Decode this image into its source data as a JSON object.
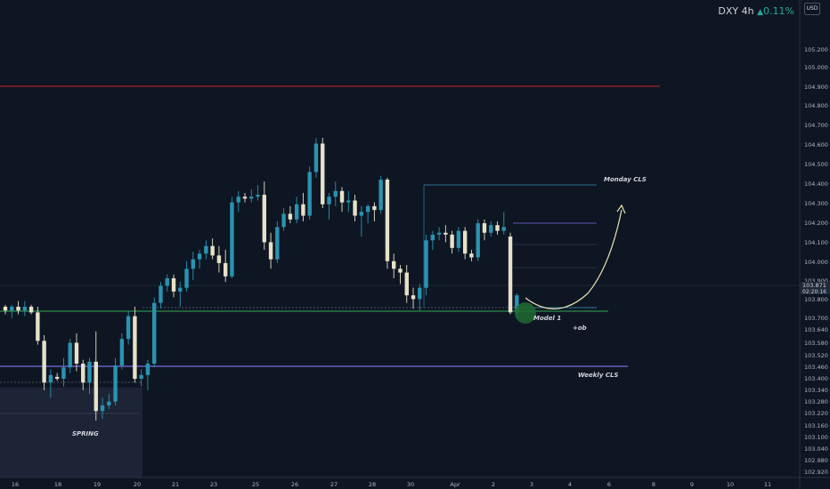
{
  "header": {
    "symbol": "DXY",
    "timeframe": "4h",
    "change": "0.11%",
    "currency": "USD"
  },
  "colors": {
    "background": "#0e1623",
    "bull": "#2a93b0",
    "bear": "#e6e1c8",
    "red_line": "#c9232b",
    "green_line": "#34a853",
    "purple_line": "#7b6ee0",
    "blue_line": "#3a8fb7",
    "arrow": "#e9e3b4"
  },
  "chart_data": {
    "type": "candlestick",
    "ylim": [
      102.92,
      105.37
    ],
    "y_ticks": [
      "105.200",
      "105.000",
      "104.900",
      "104.800",
      "104.700",
      "104.600",
      "104.500",
      "104.400",
      "104.300",
      "104.200",
      "104.100",
      "104.000",
      "103.900",
      "103.800",
      "103.700",
      "103.640",
      "103.580",
      "103.520",
      "103.460",
      "103.400",
      "103.340",
      "103.280",
      "103.220",
      "103.160",
      "103.100",
      "103.040",
      "102.980",
      "102.920"
    ],
    "x_ticks": [
      "16",
      "18",
      "19",
      "20",
      "21",
      "23",
      "25",
      "26",
      "27",
      "28",
      "30",
      "Apr",
      "2",
      "3",
      "4",
      "6",
      "8",
      "9",
      "10",
      "11"
    ],
    "current_price": {
      "value": "103.871",
      "countdown": "02:20:16"
    },
    "candles": [
      {
        "o": 103.8,
        "h": 103.81,
        "l": 103.76,
        "c": 103.78
      },
      {
        "o": 103.78,
        "h": 103.81,
        "l": 103.74,
        "c": 103.8
      },
      {
        "o": 103.8,
        "h": 103.83,
        "l": 103.76,
        "c": 103.78
      },
      {
        "o": 103.78,
        "h": 103.83,
        "l": 103.75,
        "c": 103.8
      },
      {
        "o": 103.8,
        "h": 103.81,
        "l": 103.76,
        "c": 103.77
      },
      {
        "o": 103.77,
        "h": 103.8,
        "l": 103.6,
        "c": 103.62
      },
      {
        "o": 103.62,
        "h": 103.65,
        "l": 103.36,
        "c": 103.4
      },
      {
        "o": 103.4,
        "h": 103.47,
        "l": 103.32,
        "c": 103.44
      },
      {
        "o": 103.43,
        "h": 103.45,
        "l": 103.41,
        "c": 103.42
      },
      {
        "o": 103.42,
        "h": 103.53,
        "l": 103.38,
        "c": 103.48
      },
      {
        "o": 103.48,
        "h": 103.63,
        "l": 103.45,
        "c": 103.61
      },
      {
        "o": 103.61,
        "h": 103.66,
        "l": 103.46,
        "c": 103.5
      },
      {
        "o": 103.5,
        "h": 103.52,
        "l": 103.36,
        "c": 103.4
      },
      {
        "o": 103.4,
        "h": 103.53,
        "l": 103.34,
        "c": 103.51
      },
      {
        "o": 103.51,
        "h": 103.67,
        "l": 103.2,
        "c": 103.25
      },
      {
        "o": 103.25,
        "h": 103.32,
        "l": 103.21,
        "c": 103.28
      },
      {
        "o": 103.28,
        "h": 103.34,
        "l": 103.26,
        "c": 103.3
      },
      {
        "o": 103.3,
        "h": 103.53,
        "l": 103.28,
        "c": 103.49
      },
      {
        "o": 103.49,
        "h": 103.66,
        "l": 103.47,
        "c": 103.63
      },
      {
        "o": 103.63,
        "h": 103.78,
        "l": 103.6,
        "c": 103.75
      },
      {
        "o": 103.75,
        "h": 103.8,
        "l": 103.4,
        "c": 103.42
      },
      {
        "o": 103.42,
        "h": 103.47,
        "l": 103.38,
        "c": 103.44
      },
      {
        "o": 103.44,
        "h": 103.52,
        "l": 103.36,
        "c": 103.5
      },
      {
        "o": 103.5,
        "h": 103.85,
        "l": 103.48,
        "c": 103.82
      },
      {
        "o": 103.82,
        "h": 103.93,
        "l": 103.79,
        "c": 103.91
      },
      {
        "o": 103.91,
        "h": 103.97,
        "l": 103.88,
        "c": 103.95
      },
      {
        "o": 103.95,
        "h": 103.97,
        "l": 103.85,
        "c": 103.88
      },
      {
        "o": 103.88,
        "h": 103.93,
        "l": 103.8,
        "c": 103.9
      },
      {
        "o": 103.9,
        "h": 104.04,
        "l": 103.88,
        "c": 104.0
      },
      {
        "o": 104.0,
        "h": 104.09,
        "l": 103.94,
        "c": 104.05
      },
      {
        "o": 104.05,
        "h": 104.1,
        "l": 104.0,
        "c": 104.08
      },
      {
        "o": 104.08,
        "h": 104.15,
        "l": 104.05,
        "c": 104.12
      },
      {
        "o": 104.12,
        "h": 104.16,
        "l": 104.05,
        "c": 104.07
      },
      {
        "o": 104.07,
        "h": 104.12,
        "l": 103.98,
        "c": 104.03
      },
      {
        "o": 104.03,
        "h": 104.1,
        "l": 103.93,
        "c": 103.96
      },
      {
        "o": 103.96,
        "h": 104.38,
        "l": 103.95,
        "c": 104.35
      },
      {
        "o": 104.35,
        "h": 104.41,
        "l": 104.3,
        "c": 104.38
      },
      {
        "o": 104.38,
        "h": 104.4,
        "l": 104.35,
        "c": 104.37
      },
      {
        "o": 104.37,
        "h": 104.42,
        "l": 104.35,
        "c": 104.38
      },
      {
        "o": 104.38,
        "h": 104.44,
        "l": 104.36,
        "c": 104.39
      },
      {
        "o": 104.39,
        "h": 104.46,
        "l": 104.1,
        "c": 104.14
      },
      {
        "o": 104.14,
        "h": 104.19,
        "l": 104.0,
        "c": 104.05
      },
      {
        "o": 104.05,
        "h": 104.25,
        "l": 104.03,
        "c": 104.22
      },
      {
        "o": 104.22,
        "h": 104.32,
        "l": 104.2,
        "c": 104.29
      },
      {
        "o": 104.29,
        "h": 104.33,
        "l": 104.24,
        "c": 104.26
      },
      {
        "o": 104.26,
        "h": 104.38,
        "l": 104.24,
        "c": 104.34
      },
      {
        "o": 104.34,
        "h": 104.4,
        "l": 104.25,
        "c": 104.28
      },
      {
        "o": 104.28,
        "h": 104.54,
        "l": 104.26,
        "c": 104.51
      },
      {
        "o": 104.51,
        "h": 104.69,
        "l": 104.48,
        "c": 104.66
      },
      {
        "o": 104.66,
        "h": 104.69,
        "l": 104.32,
        "c": 104.34
      },
      {
        "o": 104.34,
        "h": 104.4,
        "l": 104.26,
        "c": 104.38
      },
      {
        "o": 104.38,
        "h": 104.46,
        "l": 104.33,
        "c": 104.41
      },
      {
        "o": 104.41,
        "h": 104.43,
        "l": 104.3,
        "c": 104.35
      },
      {
        "o": 104.35,
        "h": 104.41,
        "l": 104.3,
        "c": 104.36
      },
      {
        "o": 104.36,
        "h": 104.39,
        "l": 104.25,
        "c": 104.28
      },
      {
        "o": 104.28,
        "h": 104.33,
        "l": 104.17,
        "c": 104.3
      },
      {
        "o": 104.3,
        "h": 104.34,
        "l": 104.24,
        "c": 104.33
      },
      {
        "o": 104.33,
        "h": 104.35,
        "l": 104.25,
        "c": 104.31
      },
      {
        "o": 104.31,
        "h": 104.49,
        "l": 104.29,
        "c": 104.47
      },
      {
        "o": 104.47,
        "h": 104.48,
        "l": 104.0,
        "c": 104.04
      },
      {
        "o": 104.04,
        "h": 104.08,
        "l": 103.95,
        "c": 104.0
      },
      {
        "o": 104.0,
        "h": 104.02,
        "l": 103.92,
        "c": 103.98
      },
      {
        "o": 103.98,
        "h": 104.02,
        "l": 103.82,
        "c": 103.86
      },
      {
        "o": 103.86,
        "h": 103.9,
        "l": 103.79,
        "c": 103.84
      },
      {
        "o": 103.84,
        "h": 103.92,
        "l": 103.78,
        "c": 103.9
      },
      {
        "o": 103.9,
        "h": 104.18,
        "l": 103.86,
        "c": 104.15
      },
      {
        "o": 104.15,
        "h": 104.2,
        "l": 104.1,
        "c": 104.18
      },
      {
        "o": 104.18,
        "h": 104.22,
        "l": 104.15,
        "c": 104.19
      },
      {
        "o": 104.19,
        "h": 104.23,
        "l": 104.14,
        "c": 104.18
      },
      {
        "o": 104.18,
        "h": 104.2,
        "l": 104.08,
        "c": 104.11
      },
      {
        "o": 104.11,
        "h": 104.22,
        "l": 104.09,
        "c": 104.2
      },
      {
        "o": 104.2,
        "h": 104.22,
        "l": 104.05,
        "c": 104.08
      },
      {
        "o": 104.08,
        "h": 104.1,
        "l": 104.04,
        "c": 104.06
      },
      {
        "o": 104.06,
        "h": 104.26,
        "l": 104.04,
        "c": 104.24
      },
      {
        "o": 104.24,
        "h": 104.26,
        "l": 104.15,
        "c": 104.19
      },
      {
        "o": 104.19,
        "h": 104.25,
        "l": 104.17,
        "c": 104.23
      },
      {
        "o": 104.23,
        "h": 104.25,
        "l": 104.18,
        "c": 104.2
      },
      {
        "o": 104.2,
        "h": 104.3,
        "l": 104.18,
        "c": 104.22
      },
      {
        "o": 104.17,
        "h": 104.19,
        "l": 103.76,
        "c": 103.77
      },
      {
        "o": 103.77,
        "h": 103.87,
        "l": 103.74,
        "c": 103.86
      }
    ],
    "levels": [
      {
        "price": 104.91,
        "label": ""
      },
      {
        "price": 103.75,
        "label": "Model 1"
      },
      {
        "price": 103.465,
        "label": "Weekly CLS"
      },
      {
        "price": 104.4,
        "label": "Monday CLS"
      }
    ],
    "annotations": [
      "SPRING",
      "+ob"
    ]
  }
}
